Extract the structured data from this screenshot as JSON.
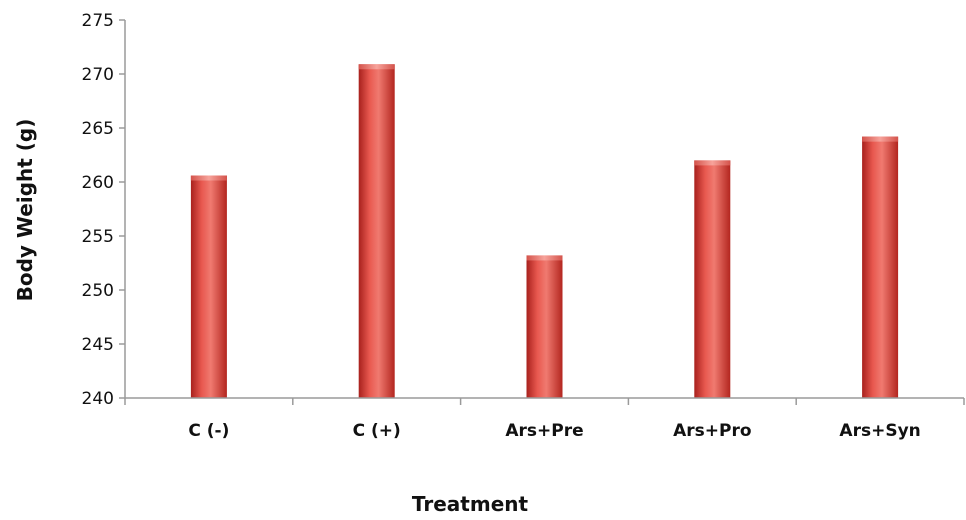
{
  "chart_data": {
    "type": "bar",
    "categories": [
      "C (-)",
      "C (+)",
      "Ars+Pre",
      "Ars+Pro",
      "Ars+Syn"
    ],
    "values": [
      260.6,
      270.9,
      253.2,
      262.0,
      264.2
    ],
    "xlabel": "Treatment",
    "ylabel": "Body Weight (g)",
    "ylim": [
      240,
      275
    ],
    "yticks": [
      "275",
      "270",
      "265",
      "260",
      "255",
      "250",
      "245",
      "240"
    ],
    "grid": false,
    "legend": "none",
    "bar_color": "#d9403a"
  }
}
